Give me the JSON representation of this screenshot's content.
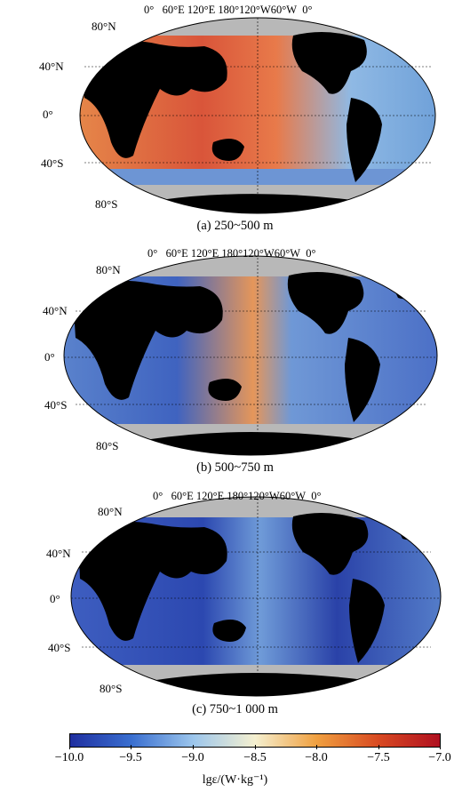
{
  "panels": [
    {
      "caption": "(a) 250~500 m",
      "mood": "warm"
    },
    {
      "caption": "(b) 500~750 m",
      "mood": "mixed"
    },
    {
      "caption": "(c) 750~1 000 m",
      "mood": "cool"
    }
  ],
  "lon_labels": [
    "0°",
    "60°E",
    "120°E",
    "180°",
    "120°W",
    "60°W",
    "0°"
  ],
  "lat_labels": {
    "n80": "80°N",
    "n40": "40°N",
    "eq": "0°",
    "s40": "40°S",
    "s80": "80°S"
  },
  "colorbar": {
    "ticks": [
      "−10.0",
      "−9.5",
      "−9.0",
      "−8.5",
      "−8.0",
      "−7.5",
      "−7.0"
    ],
    "label": "lgε/(W·kg⁻¹)",
    "colors": [
      "#1f2fa0",
      "#3a6fd0",
      "#9cc6ec",
      "#f5f0d0",
      "#f0a040",
      "#d84a22",
      "#b01020"
    ]
  },
  "colors": {
    "land": "#000000",
    "ice": "#b8b8b8",
    "ocean_deep": "#2a44b8",
    "ocean_mid": "#7aaee0",
    "ocean_warm": "#e86a30"
  }
}
